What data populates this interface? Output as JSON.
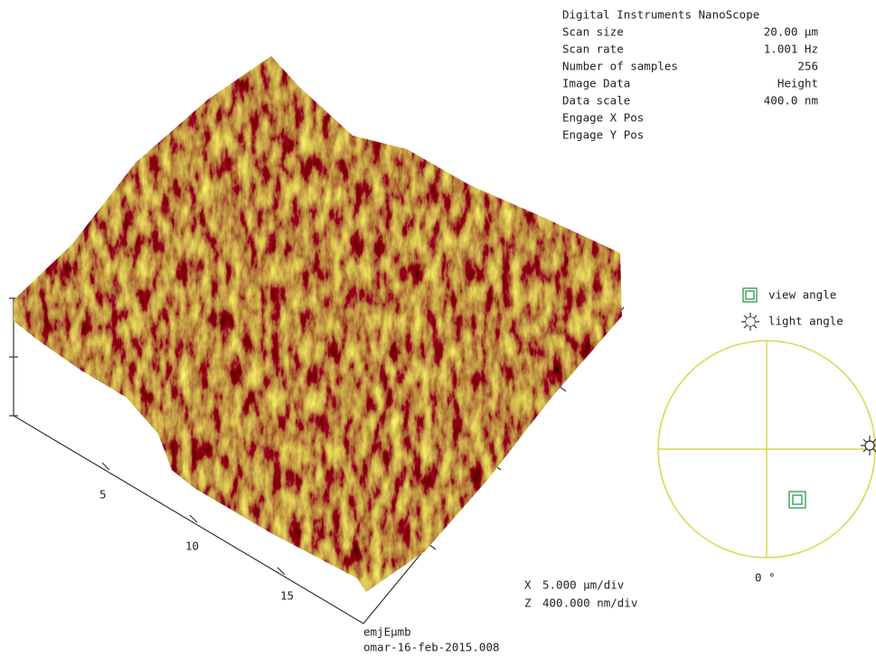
{
  "info": {
    "title": "Digital Instruments NanoScope",
    "rows": [
      [
        "Scan size",
        "20.00 µm"
      ],
      [
        "Scan rate",
        "1.001 Hz"
      ],
      [
        "Number of samples",
        "256"
      ],
      [
        "Image Data",
        "Height"
      ],
      [
        "Data scale",
        "400.0 nm"
      ],
      [
        "Engage X Pos",
        ""
      ],
      [
        "Engage Y Pos",
        ""
      ]
    ]
  },
  "axis_labels": [
    "5",
    "10",
    "15"
  ],
  "scale": [
    [
      "X",
      "5.000 µm/div"
    ],
    [
      "Z",
      "400.000 nm/div"
    ]
  ],
  "footer": [
    "emjEμmb",
    "omar-16-feb-2015.008"
  ],
  "legend": {
    "view": "view angle",
    "light": "light angle",
    "angle": "0 °"
  }
}
